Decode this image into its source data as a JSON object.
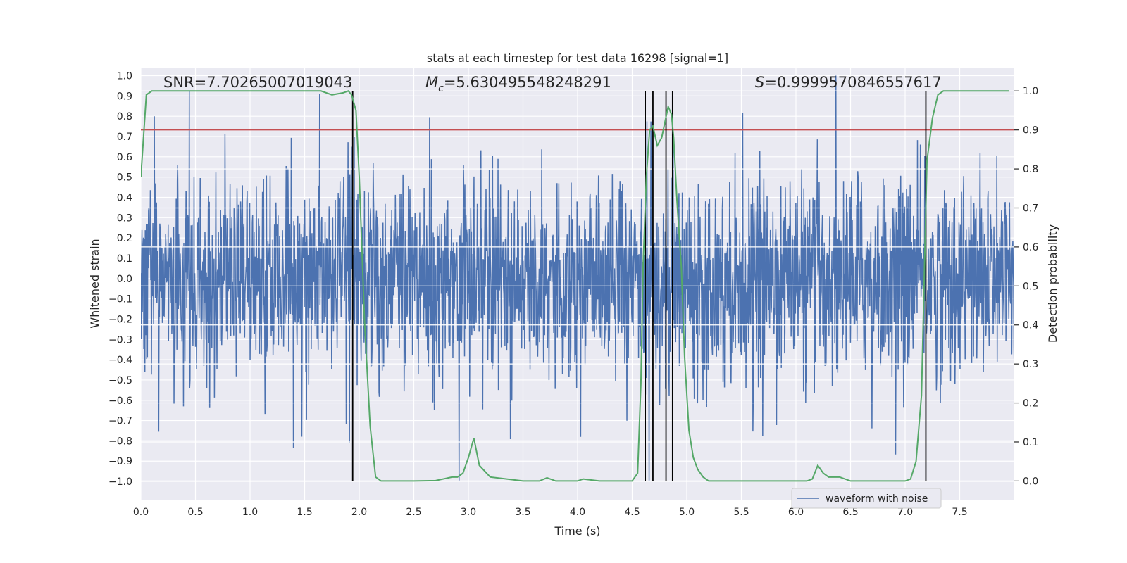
{
  "chart_data": {
    "type": "line",
    "title": "stats at each timestep for test data 16298 [signal=1]",
    "xlabel": "Time (s)",
    "ylabel_left": "Whitened strain",
    "ylabel_right": "Detection probability",
    "xlim": [
      0.0,
      8.0
    ],
    "ylim_left": [
      -1.09,
      1.04
    ],
    "ylim_right": [
      -0.048,
      1.06
    ],
    "x_ticks": [
      0.0,
      0.5,
      1.0,
      1.5,
      2.0,
      2.5,
      3.0,
      3.5,
      4.0,
      4.5,
      5.0,
      5.5,
      6.0,
      6.5,
      7.0,
      7.5
    ],
    "x_tick_labels": [
      "0.0",
      "0.5",
      "1.0",
      "1.5",
      "2.0",
      "2.5",
      "3.0",
      "3.5",
      "4.0",
      "4.5",
      "5.0",
      "5.5",
      "6.0",
      "6.5",
      "7.0",
      "7.5"
    ],
    "y_left_ticks": [
      1.0,
      0.9,
      0.8,
      0.7,
      0.6,
      0.5,
      0.4,
      0.3,
      0.2,
      0.1,
      0.0,
      -0.1,
      -0.2,
      -0.3,
      -0.4,
      -0.5,
      -0.6,
      -0.7,
      -0.8,
      -0.9,
      -1.0
    ],
    "y_left_tick_labels": [
      "1.0",
      "0.9",
      "0.8",
      "0.7",
      "0.6",
      "0.5",
      "0.4",
      "0.3",
      "0.2",
      "0.1",
      "0.0",
      "−0.1",
      "−0.2",
      "−0.3",
      "−0.4",
      "−0.5",
      "−0.6",
      "−0.7",
      "−0.8",
      "−0.9",
      "−1.0"
    ],
    "y_right_ticks": [
      1.0,
      0.9,
      0.8,
      0.7,
      0.6,
      0.5,
      0.4,
      0.3,
      0.2,
      0.1,
      0.0
    ],
    "y_right_tick_labels": [
      "1.0",
      "0.9",
      "0.8",
      "0.7",
      "0.6",
      "0.5",
      "0.4",
      "0.3",
      "0.2",
      "0.1",
      "0.0"
    ],
    "annotations": {
      "snr": "SNR=7.70265007019043",
      "mc_symbol": "M",
      "mc_subscript": "c",
      "mc_value": "=5.630495548248291",
      "s_symbol": "S",
      "s_value": "=0.9999570846557617"
    },
    "legend": {
      "label": "waveform with noise",
      "position": "lower-right"
    },
    "threshold": {
      "value": 0.9,
      "axis": "right",
      "color": "#c44e52"
    },
    "detection_markers_x": [
      1.94,
      4.62,
      4.69,
      4.81,
      4.87,
      7.19
    ],
    "series": [
      {
        "name": "waveform with noise",
        "axis": "left",
        "color": "#4c72b0",
        "kind": "noise",
        "duration": 8.0,
        "n_points": 2400,
        "amplitude_std": 0.24,
        "clip": [
          -1.0,
          1.0
        ]
      },
      {
        "name": "detection probability",
        "axis": "right",
        "color": "#55a868",
        "x": [
          0.0,
          0.05,
          0.1,
          0.15,
          0.2,
          0.3,
          0.5,
          0.8,
          1.0,
          1.3,
          1.5,
          1.65,
          1.75,
          1.85,
          1.9,
          1.93,
          1.97,
          2.0,
          2.05,
          2.1,
          2.15,
          2.2,
          2.3,
          2.5,
          2.7,
          2.85,
          2.9,
          2.95,
          3.0,
          3.05,
          3.1,
          3.2,
          3.5,
          3.65,
          3.72,
          3.8,
          4.0,
          4.05,
          4.2,
          4.5,
          4.55,
          4.58,
          4.6,
          4.63,
          4.66,
          4.69,
          4.73,
          4.77,
          4.8,
          4.83,
          4.86,
          4.88,
          4.91,
          4.95,
          4.98,
          5.02,
          5.06,
          5.1,
          5.15,
          5.2,
          5.3,
          5.5,
          5.7,
          5.9,
          6.1,
          6.15,
          6.2,
          6.25,
          6.3,
          6.4,
          6.5,
          6.7,
          7.0,
          7.05,
          7.1,
          7.15,
          7.2,
          7.25,
          7.3,
          7.35,
          7.4,
          7.6,
          7.8,
          7.95
        ],
        "y": [
          0.78,
          0.99,
          1.0,
          1.0,
          1.0,
          1.0,
          1.0,
          1.0,
          1.0,
          1.0,
          1.0,
          1.0,
          0.99,
          0.995,
          1.0,
          0.99,
          0.95,
          0.78,
          0.4,
          0.14,
          0.01,
          0.0,
          0.0,
          0.0,
          0.001,
          0.01,
          0.01,
          0.02,
          0.06,
          0.11,
          0.04,
          0.01,
          0.0,
          0.0,
          0.008,
          0.0,
          0.0,
          0.005,
          0.0,
          0.0,
          0.02,
          0.25,
          0.55,
          0.78,
          0.9,
          0.91,
          0.86,
          0.88,
          0.92,
          0.96,
          0.94,
          0.88,
          0.72,
          0.55,
          0.32,
          0.13,
          0.06,
          0.03,
          0.01,
          0.0,
          0.0,
          0.0,
          0.0,
          0.0,
          0.0,
          0.005,
          0.04,
          0.02,
          0.01,
          0.01,
          0.0,
          0.0,
          0.0,
          0.005,
          0.05,
          0.22,
          0.82,
          0.93,
          0.99,
          1.0,
          1.0,
          1.0,
          1.0,
          1.0
        ]
      }
    ]
  }
}
